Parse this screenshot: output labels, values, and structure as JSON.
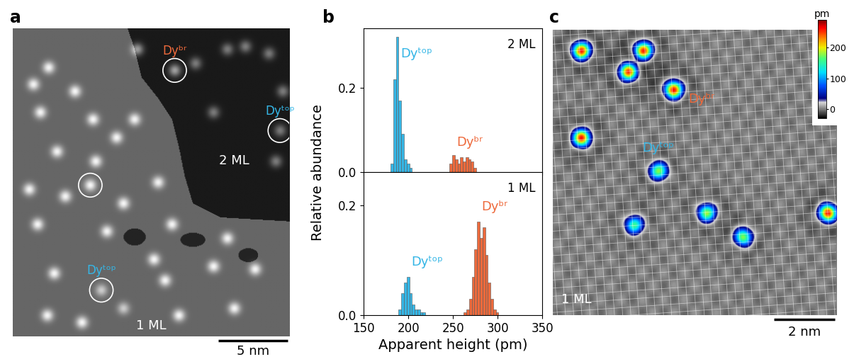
{
  "chart_data": [
    {
      "type": "image",
      "panel_label": "a",
      "width_nm": 20,
      "height_nm": 22,
      "texts": [
        "2 ML",
        "1 ML"
      ],
      "scale_bar": {
        "length_nm": 5,
        "label": "5 nm"
      },
      "adatoms": [
        {
          "x": 9.0,
          "y": 1.5,
          "height": 255
        },
        {
          "x": 11.7,
          "y": 3.0,
          "height": 262,
          "label": "Dyᵇʳ",
          "circled": true
        },
        {
          "x": 13.2,
          "y": 2.5,
          "height": 190
        },
        {
          "x": 15.5,
          "y": 1.5,
          "height": 188
        },
        {
          "x": 16.8,
          "y": 1.3,
          "height": 192
        },
        {
          "x": 18.5,
          "y": 1.8,
          "height": 186
        },
        {
          "x": 19.5,
          "y": 4.5,
          "height": 190
        },
        {
          "x": 14.5,
          "y": 6.0,
          "height": 189
        },
        {
          "x": 19.3,
          "y": 7.3,
          "height": 187,
          "label": "Dyᵗᵒᵖ",
          "circled": true
        },
        {
          "x": 19.0,
          "y": 9.5,
          "height": 191
        },
        {
          "x": 2.6,
          "y": 2.8,
          "height": 280
        },
        {
          "x": 1.5,
          "y": 4.0,
          "height": 276
        },
        {
          "x": 4.5,
          "y": 4.5,
          "height": 283
        },
        {
          "x": 2.0,
          "y": 6.0,
          "height": 279
        },
        {
          "x": 5.8,
          "y": 6.5,
          "height": 284
        },
        {
          "x": 8.8,
          "y": 6.5,
          "height": 278
        },
        {
          "x": 7.5,
          "y": 7.8,
          "height": 281
        },
        {
          "x": 3.2,
          "y": 8.8,
          "height": 277
        },
        {
          "x": 6.0,
          "y": 9.5,
          "height": 282
        },
        {
          "x": 1.2,
          "y": 11.5,
          "height": 280
        },
        {
          "x": 5.6,
          "y": 11.2,
          "height": 285,
          "circled": true
        },
        {
          "x": 3.8,
          "y": 12.0,
          "height": 279
        },
        {
          "x": 8.0,
          "y": 12.5,
          "height": 283
        },
        {
          "x": 10.5,
          "y": 11.0,
          "height": 276
        },
        {
          "x": 1.8,
          "y": 14.0,
          "height": 281
        },
        {
          "x": 6.8,
          "y": 14.5,
          "height": 278
        },
        {
          "x": 10.2,
          "y": 16.5,
          "height": 284
        },
        {
          "x": 11.5,
          "y": 14.0,
          "height": 280
        },
        {
          "x": 15.5,
          "y": 15.0,
          "height": 277
        },
        {
          "x": 3.0,
          "y": 17.5,
          "height": 282
        },
        {
          "x": 6.4,
          "y": 18.7,
          "height": 200,
          "label": "Dyᵗᵒᵖ",
          "circled": true
        },
        {
          "x": 11.0,
          "y": 18.0,
          "height": 279
        },
        {
          "x": 14.5,
          "y": 17.0,
          "height": 283
        },
        {
          "x": 17.5,
          "y": 17.2,
          "height": 280
        },
        {
          "x": 2.5,
          "y": 20.5,
          "height": 278
        },
        {
          "x": 5.0,
          "y": 21.0,
          "height": 281
        },
        {
          "x": 8.0,
          "y": 20.0,
          "height": 198
        },
        {
          "x": 12.0,
          "y": 20.5,
          "height": 282
        },
        {
          "x": 16.0,
          "y": 20.0,
          "height": 279
        }
      ]
    },
    {
      "type": "histogram",
      "panel_label": "b",
      "text": "2 ML",
      "xlim": [
        150,
        350
      ],
      "xticks": [
        150,
        200,
        250,
        300,
        350
      ],
      "ylim": [
        0,
        0.34
      ],
      "yticks": [
        {
          "value": 0,
          "label": "0.0"
        },
        0.2
      ],
      "tick_labels": "y",
      "series": [
        {
          "name": "Dyᵗᵒᵖ",
          "color": "#35b6e6",
          "bins": [
            180,
            183,
            186,
            189,
            192,
            195,
            198,
            201,
            204
          ],
          "counts": [
            0.02,
            0.22,
            0.32,
            0.17,
            0.09,
            0.03,
            0.02,
            0.01
          ]
        },
        {
          "name": "Dyᵇʳ",
          "color": "#ee6a3c",
          "bins": [
            246,
            249,
            252,
            255,
            258,
            261,
            264,
            267,
            270,
            273,
            276
          ],
          "counts": [
            0.02,
            0.04,
            0.03,
            0.02,
            0.035,
            0.025,
            0.035,
            0.03,
            0.025,
            0.01
          ]
        }
      ]
    },
    {
      "type": "histogram",
      "text": "1 ML",
      "xlim": [
        150,
        350
      ],
      "xticks": [
        150,
        200,
        250,
        300,
        350
      ],
      "ylim": [
        0,
        0.26
      ],
      "yticks": [
        {
          "value": 0,
          "label": "0.0"
        },
        0.2
      ],
      "xlabel": "Apparent height (pm)",
      "ylabel": "Relative abundance",
      "series": [
        {
          "name": "Dyᵗᵒᵖ",
          "color": "#35b6e6",
          "bins": [
            189,
            192,
            195,
            198,
            201,
            204,
            207,
            210,
            213,
            216,
            219
          ],
          "counts": [
            0.01,
            0.04,
            0.06,
            0.07,
            0.04,
            0.02,
            0.01,
            0.01,
            0.005,
            0.005
          ]
        },
        {
          "name": "Dyᵇʳ",
          "color": "#ee6a3c",
          "bins": [
            262,
            265,
            268,
            271,
            274,
            277,
            280,
            283,
            286,
            289,
            292,
            295,
            298,
            301
          ],
          "counts": [
            0.005,
            0.01,
            0.03,
            0.07,
            0.12,
            0.17,
            0.14,
            0.16,
            0.11,
            0.06,
            0.03,
            0.01,
            0.005
          ]
        }
      ]
    },
    {
      "type": "image",
      "panel_label": "c",
      "width_nm": 9.4,
      "height_nm": 9.5,
      "texts": [
        "1 ML"
      ],
      "scale_bar": {
        "length_nm": 2,
        "label": "2 nm"
      },
      "colorbar": {
        "label": "pm",
        "range": [
          -30,
          290
        ],
        "ticks": [
          0,
          100,
          200
        ]
      },
      "adatoms": [
        {
          "x": 0.95,
          "y": 0.7,
          "height": 280
        },
        {
          "x": 3.0,
          "y": 0.7,
          "height": 282
        },
        {
          "x": 2.5,
          "y": 1.4,
          "height": 278
        },
        {
          "x": 4.0,
          "y": 2.0,
          "height": 285,
          "label": "Dyᵇʳ"
        },
        {
          "x": 0.95,
          "y": 3.6,
          "height": 280
        },
        {
          "x": 9.1,
          "y": 6.1,
          "height": 283
        },
        {
          "x": 3.5,
          "y": 4.7,
          "height": 195,
          "label": "Dyᵗᵒᵖ"
        },
        {
          "x": 5.1,
          "y": 6.1,
          "height": 198
        },
        {
          "x": 6.3,
          "y": 6.9,
          "height": 192
        },
        {
          "x": 2.7,
          "y": 6.5,
          "height": 170
        }
      ]
    }
  ]
}
